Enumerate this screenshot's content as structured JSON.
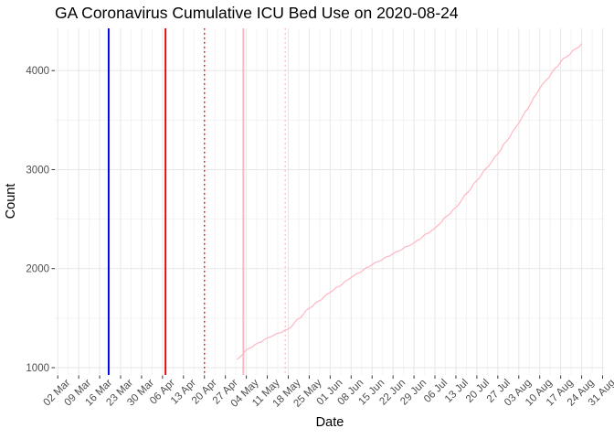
{
  "title": "GA Coronavirus Cumulative ICU Bed Use on 2020-08-24",
  "chart_data": {
    "type": "line",
    "title": "GA Coronavirus Cumulative ICU Bed Use on 2020-08-24",
    "xlabel": "Date",
    "ylabel": "Count",
    "x_start_date": "2020-03-02",
    "x_tick_interval_days": 7,
    "x_tick_labels": [
      "02 Mar",
      "09 Mar",
      "16 Mar",
      "23 Mar",
      "30 Mar",
      "06 Apr",
      "13 Apr",
      "20 Apr",
      "27 Apr",
      "04 May",
      "11 May",
      "18 May",
      "25 May",
      "01 Jun",
      "08 Jun",
      "15 Jun",
      "22 Jun",
      "29 Jun",
      "06 Jul",
      "13 Jul",
      "20 Jul",
      "27 Jul",
      "03 Aug",
      "10 Aug",
      "17 Aug",
      "24 Aug",
      "31 Aug"
    ],
    "xlim_dates": [
      "2020-03-01",
      "2020-09-01"
    ],
    "y_ticks": [
      1000,
      2000,
      3000,
      4000
    ],
    "y_minor_ticks": [
      1500,
      2500,
      3500
    ],
    "ylim": [
      925,
      4430
    ],
    "grid": "major+minor",
    "legend": "none",
    "series": [
      {
        "name": "Cumulative ICU Bed Use",
        "color": "#FFB6C1",
        "points": [
          [
            "2020-05-01",
            1085
          ],
          [
            "2020-05-04",
            1180
          ],
          [
            "2020-05-11",
            1300
          ],
          [
            "2020-05-18",
            1390
          ],
          [
            "2020-05-25",
            1600
          ],
          [
            "2020-06-01",
            1760
          ],
          [
            "2020-06-08",
            1910
          ],
          [
            "2020-06-15",
            2040
          ],
          [
            "2020-06-22",
            2150
          ],
          [
            "2020-06-29",
            2260
          ],
          [
            "2020-07-06",
            2410
          ],
          [
            "2020-07-13",
            2620
          ],
          [
            "2020-07-20",
            2890
          ],
          [
            "2020-07-27",
            3160
          ],
          [
            "2020-08-03",
            3470
          ],
          [
            "2020-08-10",
            3820
          ],
          [
            "2020-08-17",
            4090
          ],
          [
            "2020-08-24",
            4270
          ]
        ]
      }
    ],
    "vlines": [
      {
        "date": "2020-03-19",
        "color": "#0000DD",
        "style": "solid"
      },
      {
        "date": "2020-04-07",
        "color": "#EE0000",
        "style": "solid"
      },
      {
        "date": "2020-04-20",
        "color": "#EE0000",
        "style": "dotted"
      },
      {
        "date": "2020-05-03",
        "color": "#FFB6C1",
        "style": "solid"
      },
      {
        "date": "2020-05-17",
        "color": "#FFB6C1",
        "style": "dotted"
      }
    ]
  },
  "colors": {
    "background": "#FFFFFF",
    "grid_major": "#E7E7E7",
    "grid_minor": "#F3F3F3",
    "tick_mark": "#333333",
    "tick_label": "#4D4D4D",
    "text": "#000000",
    "series_line": "#FFB6C1"
  }
}
